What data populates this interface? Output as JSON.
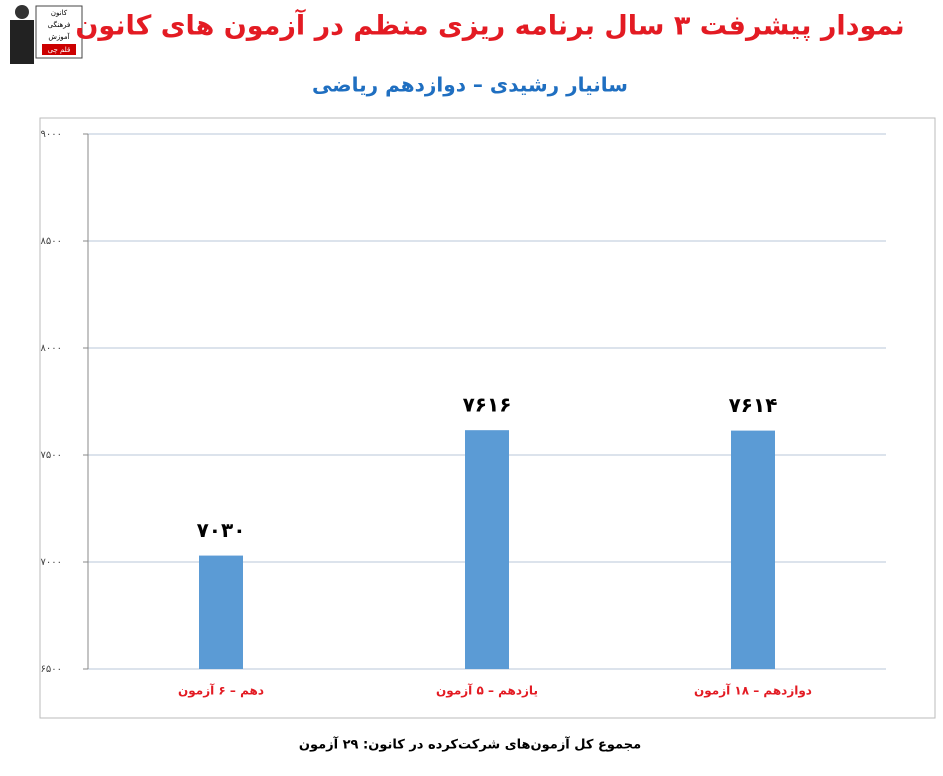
{
  "logo": [
    "کانون",
    "فرهنگی",
    "آموزش",
    "قلم چی"
  ],
  "chart_data": {
    "type": "bar",
    "title": "نمودار پیشرفت ۳ سال برنامه ریزی منظم در آزمون های کانون",
    "subtitle": "سانیار رشیدی – دوازدهم ریاضی",
    "categories": [
      "دهم – ۶ آزمون",
      "یازدهم – ۵ آزمون",
      "دوازدهم – ۱۸ آزمون"
    ],
    "values": [
      7030,
      7616,
      7614
    ],
    "value_labels": [
      "۷۰۳۰",
      "۷۶۱۶",
      "۷۶۱۴"
    ],
    "color": "#5b9bd5",
    "ylim": [
      6500,
      9000
    ],
    "yticks": [
      {
        "value": 6500,
        "label": "۶۵۰۰"
      },
      {
        "value": 7000,
        "label": "۷۰۰۰"
      },
      {
        "value": 7500,
        "label": "۷۵۰۰"
      },
      {
        "value": 8000,
        "label": "۸۰۰۰"
      },
      {
        "value": 8500,
        "label": "۸۵۰۰"
      },
      {
        "value": 9000,
        "label": "۹۰۰۰"
      }
    ],
    "grid": true,
    "footnote": "مجموع کل آزمون‌های شرکت‌کرده در کانون: ۲۹ آزمون"
  }
}
